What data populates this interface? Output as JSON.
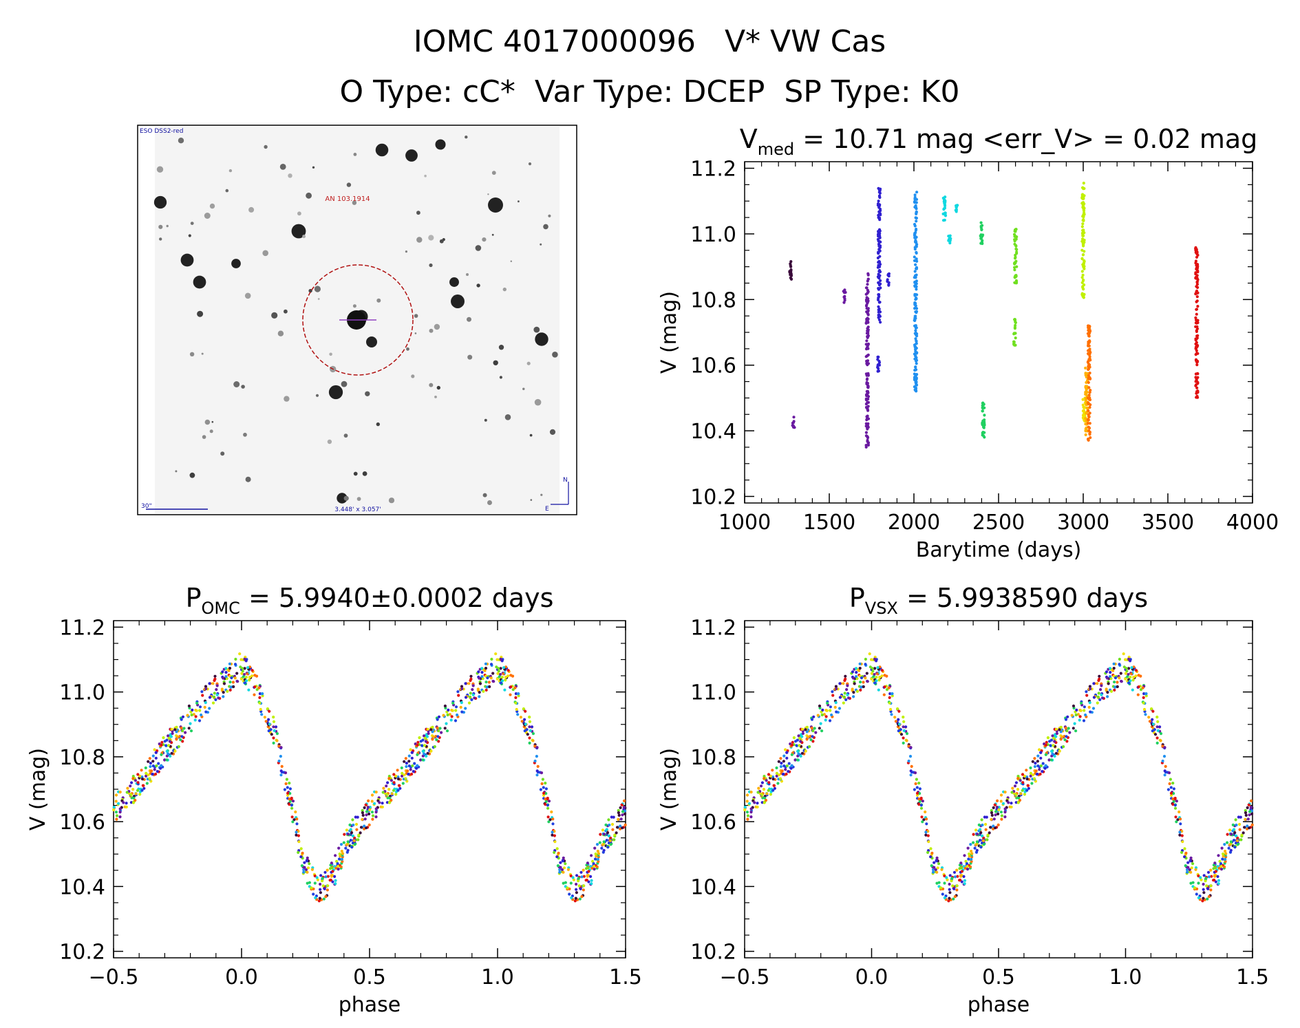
{
  "header": {
    "title": "IOMC 4017000096   V* VW Cas",
    "subtitle": "O Type: cC*  Var Type: DCEP  SP Type: K0"
  },
  "finder": {
    "survey_label": "ESO DSS2-red",
    "target_label": "AN 103.1914",
    "scale_label": "30\"",
    "fov_label": "3.448' x 3.057'",
    "north_label": "N",
    "east_label": "E"
  },
  "colors": {
    "sequence": [
      "#3a0a3a",
      "#6a1aa0",
      "#3020d0",
      "#2040e0",
      "#2090f0",
      "#10d8e0",
      "#20d060",
      "#70e020",
      "#c0f000",
      "#f0e000",
      "#ffb000",
      "#ff7000",
      "#e01010"
    ]
  },
  "chart_data": [
    {
      "id": "lightcurve",
      "type": "scatter",
      "title_main": "V",
      "title_sub": "med",
      "title_rest": " = 10.71 mag <err_V> = 0.02 mag",
      "xlabel": "Barytime (days)",
      "ylabel": "V (mag)",
      "xlim": [
        1000,
        4000
      ],
      "ylim": [
        11.22,
        10.18
      ],
      "xticks": [
        "1000",
        "1500",
        "2000",
        "2500",
        "3000",
        "3500",
        "4000"
      ],
      "yticks": [
        "10.2",
        "10.4",
        "10.6",
        "10.8",
        "11.0",
        "11.2"
      ],
      "groups": [
        {
          "x": 1270,
          "ymin": 10.86,
          "ymax": 10.92,
          "color": "#3a0a3a"
        },
        {
          "x": 1290,
          "ymin": 10.41,
          "ymax": 10.45,
          "color": "#6a1aa0"
        },
        {
          "x": 1590,
          "ymin": 10.79,
          "ymax": 10.83,
          "color": "#6a1aa0"
        },
        {
          "x": 1725,
          "ymin": 10.35,
          "ymax": 10.88,
          "color": "#6a1aa0"
        },
        {
          "x": 1790,
          "ymin": 10.58,
          "ymax": 10.63,
          "color": "#3020d0"
        },
        {
          "x": 1795,
          "ymin": 10.73,
          "ymax": 11.15,
          "color": "#3020d0"
        },
        {
          "x": 1850,
          "ymin": 10.84,
          "ymax": 10.88,
          "color": "#3020d0"
        },
        {
          "x": 2010,
          "ymin": 10.52,
          "ymax": 11.13,
          "color": "#2090f0"
        },
        {
          "x": 2180,
          "ymin": 11.04,
          "ymax": 11.12,
          "color": "#10d8e0"
        },
        {
          "x": 2210,
          "ymin": 10.97,
          "ymax": 11.0,
          "color": "#10d8e0"
        },
        {
          "x": 2250,
          "ymin": 11.06,
          "ymax": 11.09,
          "color": "#10d8e0"
        },
        {
          "x": 2400,
          "ymin": 10.97,
          "ymax": 11.04,
          "color": "#20d060"
        },
        {
          "x": 2410,
          "ymin": 10.38,
          "ymax": 10.5,
          "color": "#20d060"
        },
        {
          "x": 2595,
          "ymin": 10.66,
          "ymax": 10.74,
          "color": "#70e020"
        },
        {
          "x": 2600,
          "ymin": 10.85,
          "ymax": 11.02,
          "color": "#70e020"
        },
        {
          "x": 3000,
          "ymin": 10.8,
          "ymax": 11.16,
          "color": "#c0f000"
        },
        {
          "x": 3005,
          "ymin": 10.42,
          "ymax": 10.5,
          "color": "#f0e000"
        },
        {
          "x": 3020,
          "ymin": 10.38,
          "ymax": 10.6,
          "color": "#ffb000"
        },
        {
          "x": 3035,
          "ymin": 10.37,
          "ymax": 10.72,
          "color": "#ff7000"
        },
        {
          "x": 3670,
          "ymin": 10.5,
          "ymax": 10.96,
          "color": "#e01010"
        }
      ]
    },
    {
      "id": "phase_omc",
      "type": "scatter",
      "title_main": "P",
      "title_sub": "OMC",
      "title_rest": " = 5.9940±0.0002 days",
      "xlabel": "phase",
      "ylabel": "V (mag)",
      "xlim": [
        -0.5,
        1.5
      ],
      "ylim": [
        11.22,
        10.18
      ],
      "xticks": [
        "−0.5",
        "0.0",
        "0.5",
        "1.0",
        "1.5"
      ],
      "yticks": [
        "10.2",
        "10.4",
        "10.6",
        "10.8",
        "11.0",
        "11.2"
      ],
      "curve_phase": [
        0.0,
        0.05,
        0.12,
        0.18,
        0.24,
        0.3,
        0.36,
        0.42,
        0.5,
        0.6,
        0.7,
        0.8,
        0.9,
        1.0
      ],
      "curve_mag": [
        11.08,
        11.02,
        10.9,
        10.7,
        10.48,
        10.38,
        10.44,
        10.55,
        10.63,
        10.72,
        10.82,
        10.92,
        11.01,
        11.08
      ]
    },
    {
      "id": "phase_vsx",
      "type": "scatter",
      "title_main": "P",
      "title_sub": "VSX",
      "title_rest": " = 5.9938590 days",
      "xlabel": "phase",
      "ylabel": "V (mag)",
      "xlim": [
        -0.5,
        1.5
      ],
      "ylim": [
        11.22,
        10.18
      ],
      "xticks": [
        "−0.5",
        "0.0",
        "0.5",
        "1.0",
        "1.5"
      ],
      "yticks": [
        "10.2",
        "10.4",
        "10.6",
        "10.8",
        "11.0",
        "11.2"
      ],
      "curve_phase": [
        0.0,
        0.05,
        0.12,
        0.18,
        0.24,
        0.3,
        0.36,
        0.42,
        0.5,
        0.6,
        0.7,
        0.8,
        0.9,
        1.0
      ],
      "curve_mag": [
        11.08,
        11.02,
        10.9,
        10.7,
        10.48,
        10.38,
        10.44,
        10.55,
        10.63,
        10.72,
        10.82,
        10.92,
        11.01,
        11.08
      ]
    }
  ]
}
